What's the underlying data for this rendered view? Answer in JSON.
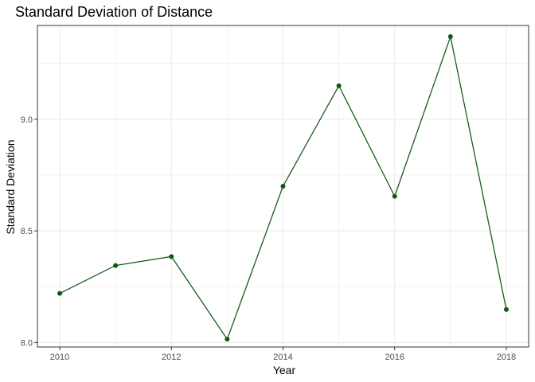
{
  "chart_data": {
    "type": "line",
    "title": "Standard Deviation of Distance",
    "xlabel": "Year",
    "ylabel": "Standard Deviation",
    "x": [
      2010,
      2011,
      2012,
      2013,
      2014,
      2015,
      2016,
      2017,
      2018
    ],
    "y": [
      8.22,
      8.345,
      8.385,
      8.015,
      8.7,
      9.15,
      8.655,
      9.37,
      8.148
    ],
    "xlim": [
      2009.6,
      2018.4
    ],
    "ylim": [
      7.98,
      9.42
    ],
    "xticks": [
      2010,
      2012,
      2014,
      2016,
      2018
    ],
    "xtick_labels": [
      "2010",
      "2012",
      "2014",
      "2016",
      "2018"
    ],
    "yticks": [
      8.0,
      8.5,
      9.0
    ],
    "ytick_labels": [
      "8.0",
      "8.5",
      "9.0"
    ],
    "grid": true,
    "line_color": "#1a5c1a",
    "point_color": "#0f5a0f",
    "grid_color": "#ebebeb",
    "panel_border_color": "#333333"
  }
}
